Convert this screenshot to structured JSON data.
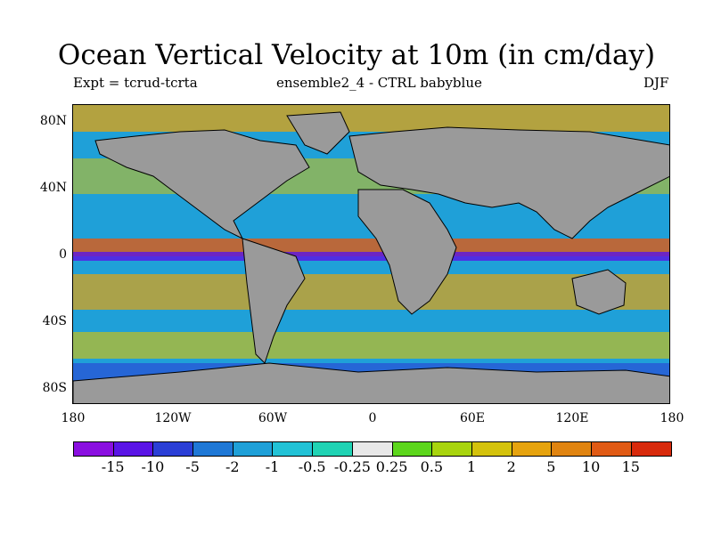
{
  "title": "Ocean Vertical Velocity at 10m (in cm/day)",
  "subtitle_left": "Expt = tcrud-tcrta",
  "subtitle_center": "ensemble2_4 - CTRL babyblue",
  "subtitle_right": "DJF",
  "lat_labels": [
    "80N",
    "40N",
    "0",
    "40S",
    "80S"
  ],
  "lon_labels": [
    "180",
    "120W",
    "60W",
    "0",
    "60E",
    "120E",
    "180"
  ],
  "colorbar": {
    "colors": [
      "#8a0fe0",
      "#5a14e6",
      "#2b3fd6",
      "#1f78d6",
      "#1fa0d8",
      "#22c2d6",
      "#20d3b4",
      "#e8e8e8",
      "#5cd61c",
      "#a8d40e",
      "#d4c20c",
      "#e6a30e",
      "#e08410",
      "#e05a14",
      "#d82a0c"
    ],
    "labels": [
      "-15",
      "-10",
      "-5",
      "-2",
      "-1",
      "-0.5",
      "-0.25",
      "0.25",
      "0.5",
      "1",
      "2",
      "5",
      "10",
      "15"
    ]
  }
}
